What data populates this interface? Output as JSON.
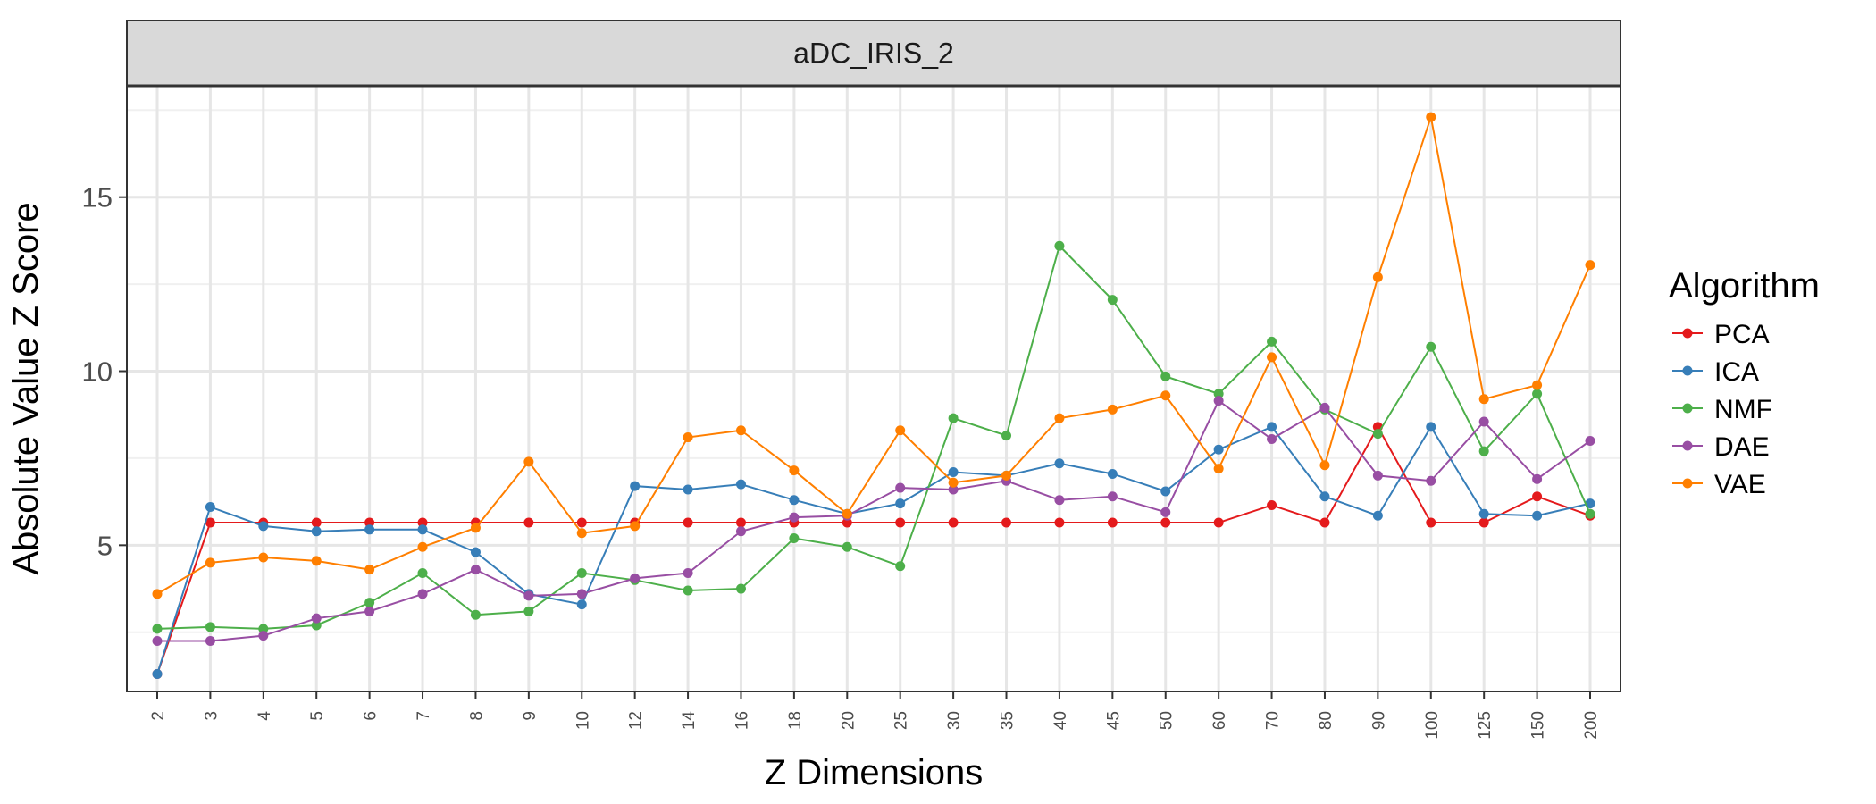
{
  "chart_data": {
    "type": "line",
    "facet_title": "aDC_IRIS_2",
    "xlabel": "Z Dimensions",
    "ylabel": "Absolute Value Z Score",
    "categories": [
      "2",
      "3",
      "4",
      "5",
      "6",
      "7",
      "8",
      "9",
      "10",
      "12",
      "14",
      "16",
      "18",
      "20",
      "25",
      "30",
      "35",
      "40",
      "45",
      "50",
      "60",
      "70",
      "80",
      "90",
      "100",
      "125",
      "150",
      "200"
    ],
    "y_ticks": [
      5,
      10,
      15
    ],
    "ylim": [
      0.8,
      18.2
    ],
    "grid": true,
    "legend": {
      "title": "Algorithm",
      "position": "right"
    },
    "series": [
      {
        "name": "PCA",
        "color": "#E41A1C",
        "values": [
          1.3,
          5.65,
          5.65,
          5.65,
          5.65,
          5.65,
          5.65,
          5.65,
          5.65,
          5.65,
          5.65,
          5.65,
          5.65,
          5.65,
          5.65,
          5.65,
          5.65,
          5.65,
          5.65,
          5.65,
          5.65,
          6.15,
          5.65,
          8.4,
          5.65,
          5.65,
          6.4,
          5.85
        ]
      },
      {
        "name": "ICA",
        "color": "#377EB8",
        "values": [
          1.3,
          6.1,
          5.55,
          5.4,
          5.45,
          5.45,
          4.8,
          3.6,
          3.3,
          6.7,
          6.6,
          6.75,
          6.3,
          5.9,
          6.2,
          7.1,
          7.0,
          7.35,
          7.05,
          6.55,
          7.75,
          8.4,
          6.4,
          5.85,
          8.4,
          5.9,
          5.85,
          6.2
        ]
      },
      {
        "name": "NMF",
        "color": "#4DAF4A",
        "values": [
          2.6,
          2.65,
          2.6,
          2.7,
          3.35,
          4.2,
          3.0,
          3.1,
          4.2,
          4.0,
          3.7,
          3.75,
          5.2,
          4.95,
          4.4,
          8.65,
          8.15,
          13.6,
          12.05,
          9.85,
          9.35,
          10.85,
          8.9,
          8.2,
          10.7,
          7.7,
          9.35,
          5.9
        ]
      },
      {
        "name": "DAE",
        "color": "#984EA3",
        "values": [
          2.25,
          2.25,
          2.4,
          2.9,
          3.1,
          3.6,
          4.3,
          3.55,
          3.6,
          4.05,
          4.2,
          5.4,
          5.8,
          5.85,
          6.65,
          6.6,
          6.85,
          6.3,
          6.4,
          5.95,
          9.15,
          8.05,
          8.95,
          7.0,
          6.85,
          8.55,
          6.9,
          8.0
        ]
      },
      {
        "name": "VAE",
        "color": "#FF7F00",
        "values": [
          3.6,
          4.5,
          4.65,
          4.55,
          4.3,
          4.95,
          5.5,
          7.4,
          5.35,
          5.55,
          8.1,
          8.3,
          7.15,
          5.9,
          8.3,
          6.8,
          7.0,
          8.65,
          8.9,
          9.3,
          7.2,
          10.4,
          7.3,
          12.7,
          17.3,
          9.2,
          9.6,
          13.05
        ]
      }
    ]
  }
}
